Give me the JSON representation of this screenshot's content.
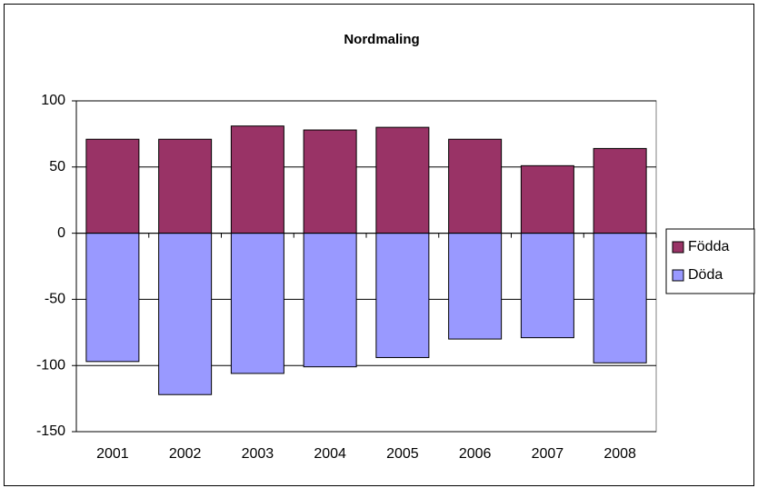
{
  "chart_data": {
    "type": "bar",
    "stacked": true,
    "title": "Nordmaling",
    "categories": [
      "2001",
      "2002",
      "2003",
      "2004",
      "2005",
      "2006",
      "2007",
      "2008"
    ],
    "series": [
      {
        "name": "Födda",
        "color": "#993366",
        "values": [
          71,
          71,
          81,
          78,
          80,
          71,
          51,
          64
        ]
      },
      {
        "name": "Döda",
        "color": "#9999ff",
        "values": [
          -97,
          -122,
          -106,
          -101,
          -94,
          -80,
          -79,
          -98
        ]
      }
    ],
    "ylim": [
      -150,
      100
    ],
    "yticks": [
      -150,
      -100,
      -50,
      0,
      50,
      100
    ],
    "grid": true,
    "legend": "right"
  }
}
